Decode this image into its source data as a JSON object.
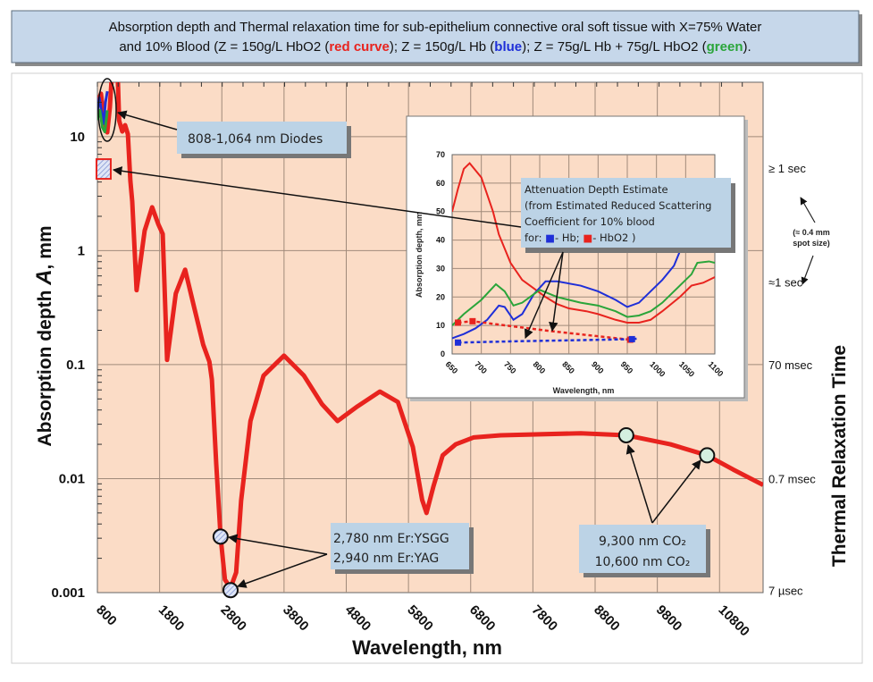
{
  "title": {
    "line1": "Absorption depth and Thermal relaxation time for sub-epithelium connective oral soft tissue with X=75% Water",
    "line2_a": "and 10% Blood (Z = 150g/L HbO2 (",
    "red_word": "red curve",
    "line2_b": ");  Z = 150g/L Hb (",
    "blue_word": "blue",
    "line2_c": ");  Z = 75g/L Hb + 75g/L HbO2 (",
    "green_word": "green",
    "line2_d": ").",
    "colors": {
      "red": "#e8231e",
      "blue": "#1f2fd8",
      "green": "#2aa53a"
    }
  },
  "chart_data": [
    {
      "type": "line",
      "yscale": "log",
      "xlabel": "Wavelength, nm",
      "ylabel_a": "Absorption depth ",
      "ylabel_italic": "A",
      "ylabel_b": ", mm",
      "xlim": [
        800,
        11500
      ],
      "ylim": [
        0.001,
        30
      ],
      "grid": true,
      "x_ticks": [
        "800",
        "1800",
        "2800",
        "3800",
        "4800",
        "5800",
        "6800",
        "7800",
        "8800",
        "9800",
        "10800"
      ],
      "x_tick_values": [
        800,
        1800,
        2800,
        3800,
        4800,
        5800,
        6800,
        7800,
        8800,
        9800,
        10800
      ],
      "y_ticks": [
        "10",
        "1",
        "0.1",
        "0.01",
        "0.001"
      ],
      "y_tick_values": [
        10,
        1,
        0.1,
        0.01,
        0.001
      ],
      "right_axis": {
        "label": "Thermal Relaxation Time",
        "ticks": [
          "≥ 1 sec",
          "≈1 sec",
          "70 msec",
          "0.7 msec",
          "7 µsec"
        ],
        "tick_values": [
          5.3,
          0.53,
          0.1,
          0.01,
          0.00105
        ],
        "note_line1": "(≈ 0.4 mm",
        "note_line2": "spot size)"
      },
      "series": [
        {
          "color": "#e8231e",
          "points": [
            [
              800,
              20
            ],
            [
              857,
              23.8
            ],
            [
              910,
              14
            ],
            [
              958,
              10.9
            ],
            [
              1000,
              18
            ],
            [
              1060,
              60
            ],
            [
              1120,
              60
            ],
            [
              1130,
              30
            ],
            [
              1150,
              13.8
            ],
            [
              1200,
              11.1
            ],
            [
              1245,
              12.6
            ],
            [
              1290,
              10.5
            ],
            [
              1330,
              4.1
            ],
            [
              1360,
              2.7
            ],
            [
              1430,
              0.45
            ],
            [
              1560,
              1.5
            ],
            [
              1680,
              2.4
            ],
            [
              1780,
              1.7
            ],
            [
              1850,
              1.4
            ],
            [
              1920,
              0.11
            ],
            [
              2060,
              0.42
            ],
            [
              2210,
              0.68
            ],
            [
              2360,
              0.31
            ],
            [
              2500,
              0.15
            ],
            [
              2600,
              0.106
            ],
            [
              2640,
              0.074
            ],
            [
              2710,
              0.0135
            ],
            [
              2780,
              0.0031
            ],
            [
              2850,
              0.0013
            ],
            [
              2940,
              0.0011
            ],
            [
              3030,
              0.0015
            ],
            [
              3110,
              0.0064
            ],
            [
              3260,
              0.032
            ],
            [
              3470,
              0.08
            ],
            [
              3800,
              0.12
            ],
            [
              4120,
              0.08
            ],
            [
              4410,
              0.045
            ],
            [
              4660,
              0.032
            ],
            [
              4980,
              0.043
            ],
            [
              5340,
              0.058
            ],
            [
              5630,
              0.047
            ],
            [
              5870,
              0.019
            ],
            [
              6020,
              0.0065
            ],
            [
              6090,
              0.005
            ],
            [
              6200,
              0.0085
            ],
            [
              6350,
              0.016
            ],
            [
              6560,
              0.02
            ],
            [
              6850,
              0.023
            ],
            [
              7280,
              0.024
            ],
            [
              8570,
              0.025
            ],
            [
              9300,
              0.024
            ],
            [
              10010,
              0.02
            ],
            [
              10600,
              0.016
            ],
            [
              11020,
              0.012
            ],
            [
              11500,
              0.0088
            ]
          ]
        },
        {
          "color": "#1f2fd8",
          "points": [
            [
              800,
              17
            ],
            [
              830,
              22
            ],
            [
              870,
              16
            ],
            [
              900,
              13
            ],
            [
              930,
              20
            ],
            [
              960,
              25
            ]
          ]
        },
        {
          "color": "#2aa53a",
          "points": [
            [
              800,
              14
            ],
            [
              840,
              17
            ],
            [
              880,
              12
            ],
            [
              920,
              11
            ],
            [
              960,
              17
            ]
          ]
        }
      ],
      "markers": [
        {
          "x": 2780,
          "y": 0.0031,
          "style": "hatched-blue"
        },
        {
          "x": 2940,
          "y": 0.00105,
          "style": "hatched-blue"
        },
        {
          "x": 9300,
          "y": 0.024,
          "style": "light-green"
        },
        {
          "x": 10600,
          "y": 0.016,
          "style": "light-green"
        },
        {
          "x": 900,
          "y": 5.2,
          "style": "hatched-red-square"
        }
      ],
      "annotations": {
        "diodes": "808-1,064 nm Diodes",
        "er_line1": "2,780 nm Er:YSGG",
        "er_line2": "2,940 nm Er:YAG",
        "co2_line1": "9,300 nm CO₂",
        "co2_line2": "10,600 nm CO₂"
      }
    },
    {
      "type": "line",
      "inset": true,
      "xlabel": "Wavelength, nm",
      "ylabel": "Absorption depth, mm",
      "xlim": [
        650,
        1100
      ],
      "ylim": [
        0,
        70
      ],
      "grid": true,
      "x_ticks": [
        "650",
        "700",
        "750",
        "800",
        "850",
        "900",
        "950",
        "1000",
        "1050",
        "1100"
      ],
      "x_tick_values": [
        650,
        700,
        750,
        800,
        850,
        900,
        950,
        1000,
        1050,
        1100
      ],
      "y_ticks": [
        "0",
        "10",
        "20",
        "30",
        "40",
        "50",
        "60",
        "70"
      ],
      "y_tick_values": [
        0,
        10,
        20,
        30,
        40,
        50,
        60,
        70
      ],
      "series": [
        {
          "color": "#e8231e",
          "points": [
            [
              650,
              50
            ],
            [
              660,
              58
            ],
            [
              670,
              65
            ],
            [
              680,
              67
            ],
            [
              700,
              62
            ],
            [
              720,
              50
            ],
            [
              730,
              42
            ],
            [
              750,
              32
            ],
            [
              770,
              26
            ],
            [
              790,
              23
            ],
            [
              810,
              20
            ],
            [
              830,
              17.5
            ],
            [
              850,
              16
            ],
            [
              880,
              15
            ],
            [
              900,
              14
            ],
            [
              930,
              12
            ],
            [
              950,
              11
            ],
            [
              970,
              11
            ],
            [
              990,
              12
            ],
            [
              1010,
              15
            ],
            [
              1040,
              20
            ],
            [
              1060,
              24
            ],
            [
              1080,
              25
            ],
            [
              1100,
              27
            ]
          ]
        },
        {
          "color": "#1f2fd8",
          "points": [
            [
              650,
              5.5
            ],
            [
              670,
              7
            ],
            [
              690,
              9
            ],
            [
              710,
              12
            ],
            [
              730,
              17
            ],
            [
              740,
              16.5
            ],
            [
              755,
              12
            ],
            [
              770,
              14
            ],
            [
              790,
              21
            ],
            [
              810,
              25.5
            ],
            [
              830,
              25.5
            ],
            [
              870,
              24
            ],
            [
              900,
              22
            ],
            [
              930,
              19
            ],
            [
              950,
              16.5
            ],
            [
              970,
              18
            ],
            [
              990,
              22
            ],
            [
              1010,
              26
            ],
            [
              1030,
              31
            ],
            [
              1040,
              36
            ],
            [
              1050,
              41
            ]
          ]
        },
        {
          "color": "#2aa53a",
          "points": [
            [
              650,
              10
            ],
            [
              670,
              14
            ],
            [
              700,
              19
            ],
            [
              725,
              24.5
            ],
            [
              740,
              22
            ],
            [
              755,
              17
            ],
            [
              770,
              18
            ],
            [
              800,
              22.5
            ],
            [
              830,
              20
            ],
            [
              870,
              18
            ],
            [
              900,
              17
            ],
            [
              930,
              15
            ],
            [
              950,
              13
            ],
            [
              970,
              13.5
            ],
            [
              990,
              15
            ],
            [
              1010,
              18
            ],
            [
              1040,
              24
            ],
            [
              1060,
              28
            ],
            [
              1070,
              32
            ],
            [
              1090,
              32.5
            ],
            [
              1100,
              32
            ]
          ]
        },
        {
          "color": "#e8231e",
          "dashed": true,
          "points": [
            [
              660,
              11
            ],
            [
              685,
              11.5
            ],
            [
              820,
              8
            ],
            [
              955,
              5
            ]
          ]
        },
        {
          "color": "#1f2fd8",
          "dashed": true,
          "points": [
            [
              660,
              4
            ],
            [
              770,
              4.5
            ],
            [
              960,
              5.2
            ],
            [
              970,
              5.5
            ]
          ]
        }
      ],
      "dashed_markers": [
        {
          "x": 660,
          "y": 11,
          "color": "#e8231e"
        },
        {
          "x": 685,
          "y": 11.5,
          "color": "#e8231e"
        },
        {
          "x": 955,
          "y": 5,
          "color": "#e8231e"
        },
        {
          "x": 660,
          "y": 4,
          "color": "#1f2fd8"
        },
        {
          "x": 958,
          "y": 5.2,
          "color": "#1f2fd8"
        }
      ],
      "annotation": {
        "line1": "Attenuation Depth Estimate",
        "line2": "(from Estimated Reduced Scattering",
        "line3": "Coefficient for 10% blood",
        "line4_a": "for: ",
        "line4_b": "- Hb; ",
        "line4_c": "- HbO2 )"
      }
    }
  ]
}
